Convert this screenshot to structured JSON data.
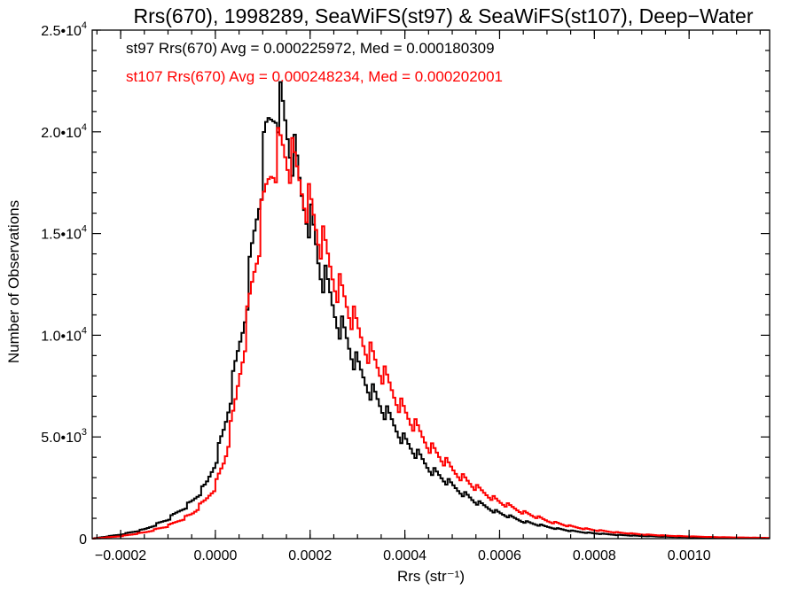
{
  "chart_data": {
    "type": "histogram-step",
    "title": "Rrs(670), 1998289, SeaWiFS(st97) & SeaWiFS(st107), Deep−Water",
    "xlabel": "Rrs (str⁻¹)",
    "ylabel": "Number of Observations",
    "xlim": [
      -0.00026,
      0.00117
    ],
    "ylim": [
      0,
      25000
    ],
    "x_ticks": [
      -0.0002,
      0.0,
      0.0002,
      0.0004,
      0.0006,
      0.0008,
      0.001
    ],
    "x_tick_labels": [
      "−0.0002",
      "0.0000",
      "0.0002",
      "0.0004",
      "0.0006",
      "0.0008",
      "0.0010"
    ],
    "y_ticks": [
      0,
      5000,
      10000,
      15000,
      20000,
      25000
    ],
    "y_tick_labels": [
      {
        "mantissa": "0",
        "exp": ""
      },
      {
        "mantissa": "5.0•10",
        "exp": "3"
      },
      {
        "mantissa": "1.0•10",
        "exp": "4"
      },
      {
        "mantissa": "1.5•10",
        "exp": "4"
      },
      {
        "mantissa": "2.0•10",
        "exp": "4"
      },
      {
        "mantissa": "2.5•10",
        "exp": "4"
      }
    ],
    "grid": false,
    "legend_placement": "top-left",
    "annotations": [
      {
        "text": "st97 Rrs(670) Avg = 0.000225972, Med = 0.000180309",
        "color": "#000000"
      },
      {
        "text": "st107 Rrs(670) Avg = 0.000248234, Med = 0.000202001",
        "color": "#ff0000"
      }
    ],
    "series": [
      {
        "color": "#000000",
        "points": [
          [
            -0.00026,
            0
          ],
          [
            -0.0002,
            200
          ],
          [
            -0.00015,
            450
          ],
          [
            -0.0001,
            950
          ],
          [
            -5e-05,
            1800
          ],
          [
            -2e-05,
            2600
          ],
          [
            0.0,
            3800
          ],
          [
            2e-05,
            5500
          ],
          [
            4e-05,
            8000
          ],
          [
            6e-05,
            10700
          ],
          [
            8e-05,
            14500
          ],
          [
            0.0001,
            18200
          ],
          [
            0.00011,
            20000
          ],
          [
            0.00012,
            20800
          ],
          [
            0.00013,
            21700
          ],
          [
            0.00014,
            21000
          ],
          [
            0.00015,
            20100
          ],
          [
            0.00016,
            19200
          ],
          [
            0.00017,
            18300
          ],
          [
            0.00018,
            17000
          ],
          [
            0.0002,
            15800
          ],
          [
            0.00022,
            13400
          ],
          [
            0.00025,
            11300
          ],
          [
            0.00028,
            9600
          ],
          [
            0.0003,
            8400
          ],
          [
            0.00035,
            6500
          ],
          [
            0.0004,
            4800
          ],
          [
            0.00045,
            3500
          ],
          [
            0.0005,
            2600
          ],
          [
            0.00055,
            1800
          ],
          [
            0.0006,
            1250
          ],
          [
            0.00065,
            850
          ],
          [
            0.0007,
            580
          ],
          [
            0.00075,
            380
          ],
          [
            0.0008,
            260
          ],
          [
            0.00085,
            180
          ],
          [
            0.0009,
            130
          ],
          [
            0.00095,
            95
          ],
          [
            0.001,
            70
          ],
          [
            0.00105,
            50
          ],
          [
            0.0011,
            35
          ],
          [
            0.00117,
            20
          ]
        ]
      },
      {
        "color": "#ff0000",
        "points": [
          [
            -0.00026,
            0
          ],
          [
            -0.0002,
            120
          ],
          [
            -0.00015,
            300
          ],
          [
            -0.0001,
            620
          ],
          [
            -5e-05,
            1200
          ],
          [
            -2e-05,
            1900
          ],
          [
            0.0,
            2600
          ],
          [
            2e-05,
            3900
          ],
          [
            4e-05,
            6300
          ],
          [
            6e-05,
            9500
          ],
          [
            8e-05,
            12900
          ],
          [
            0.0001,
            15900
          ],
          [
            0.00011,
            17400
          ],
          [
            0.00012,
            18500
          ],
          [
            0.00013,
            19000
          ],
          [
            0.00014,
            19200
          ],
          [
            0.00015,
            18900
          ],
          [
            0.00016,
            18500
          ],
          [
            0.00017,
            18000
          ],
          [
            0.00018,
            17500
          ],
          [
            0.0002,
            16300
          ],
          [
            0.00022,
            14800
          ],
          [
            0.00025,
            12900
          ],
          [
            0.00028,
            11400
          ],
          [
            0.0003,
            10200
          ],
          [
            0.00035,
            8200
          ],
          [
            0.0004,
            6200
          ],
          [
            0.00045,
            4600
          ],
          [
            0.0005,
            3400
          ],
          [
            0.00055,
            2500
          ],
          [
            0.0006,
            1800
          ],
          [
            0.00065,
            1300
          ],
          [
            0.0007,
            880
          ],
          [
            0.00075,
            600
          ],
          [
            0.0008,
            420
          ],
          [
            0.00085,
            300
          ],
          [
            0.0009,
            210
          ],
          [
            0.00095,
            150
          ],
          [
            0.001,
            110
          ],
          [
            0.00105,
            80
          ],
          [
            0.0011,
            60
          ],
          [
            0.00117,
            40
          ]
        ]
      }
    ]
  }
}
